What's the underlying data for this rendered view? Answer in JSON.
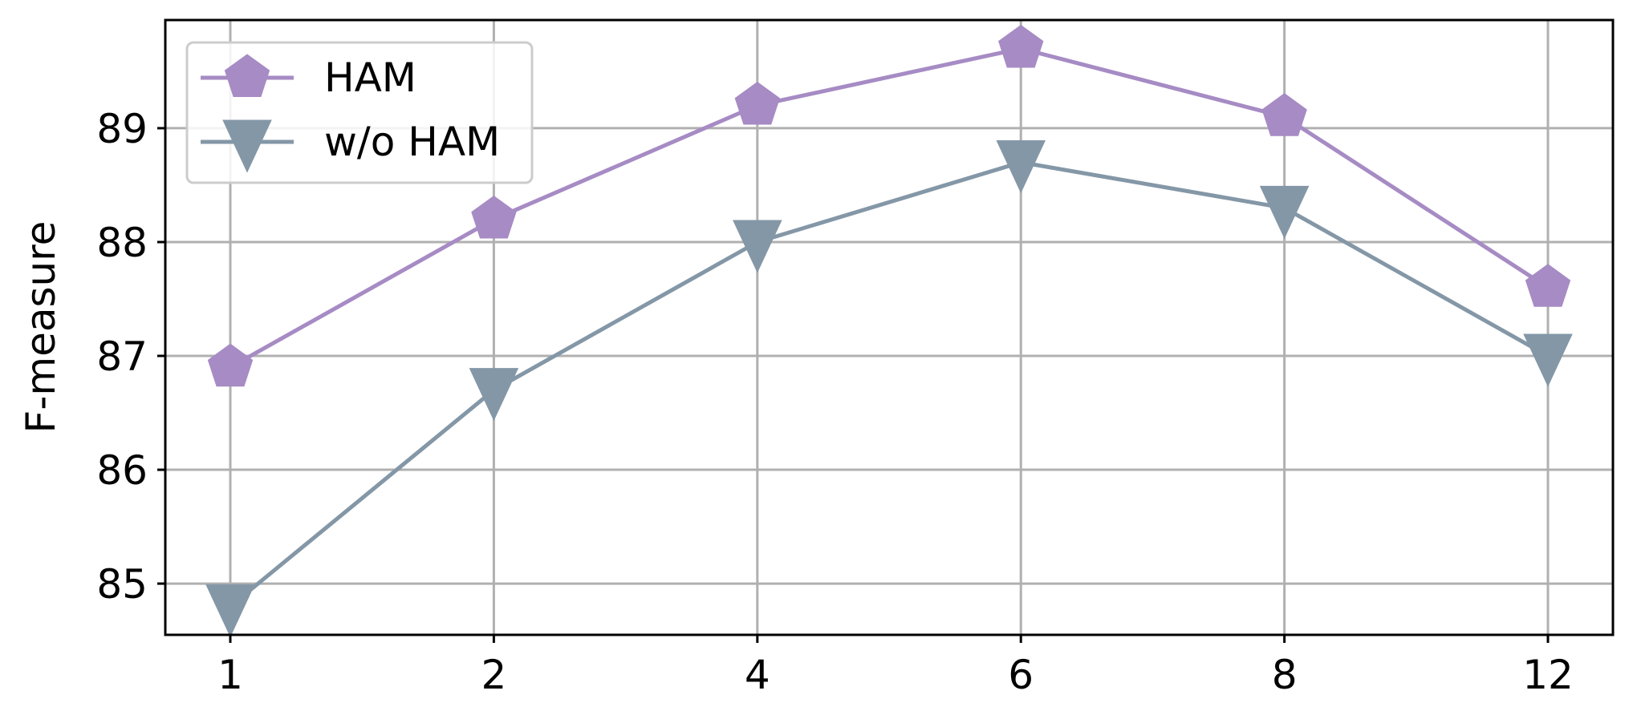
{
  "chart_data": {
    "type": "line",
    "categories": [
      "1",
      "2",
      "4",
      "6",
      "8",
      "12"
    ],
    "ylabel": "F-measure",
    "xlabel": "",
    "ylim": [
      84.55,
      89.95
    ],
    "yticks": [
      85,
      86,
      87,
      88,
      89
    ],
    "grid": true,
    "legend_position": "top-left",
    "series": [
      {
        "name": "HAM",
        "values": [
          86.9,
          88.2,
          89.2,
          89.7,
          89.1,
          87.6
        ],
        "color": "#a68bc4",
        "marker": "pentagon"
      },
      {
        "name": "w/o HAM",
        "values": [
          84.8,
          86.7,
          88.0,
          88.7,
          88.3,
          87.0
        ],
        "color": "#8497a7",
        "marker": "triangle-down"
      }
    ]
  }
}
